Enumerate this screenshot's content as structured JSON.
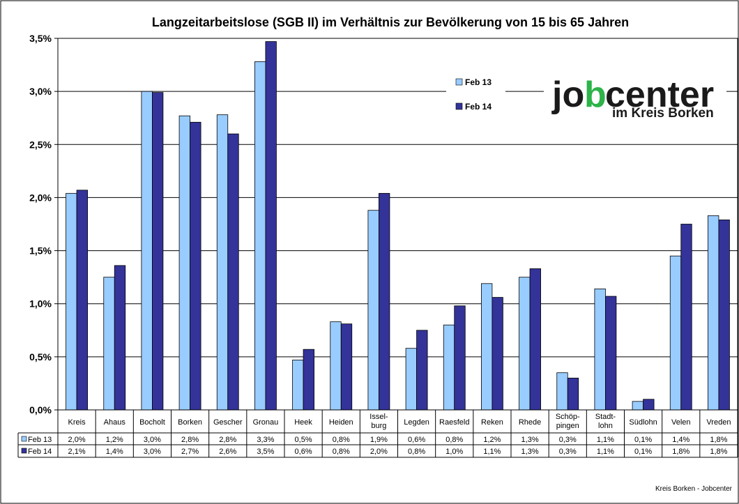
{
  "chart_data": {
    "type": "bar",
    "title": "Langzeitarbeitslose (SGB II) im Verhältnis zur Bevölkerung von 15 bis 65 Jahren",
    "categories": [
      "Kreis",
      "Ahaus",
      "Bocholt",
      "Borken",
      "Gescher",
      "Gronau",
      "Heek",
      "Heiden",
      "Issel-\nburg",
      "Legden",
      "Raesfeld",
      "Reken",
      "Rhede",
      "Schöp-\npingen",
      "Stadt-\nlohn",
      "Südlohn",
      "Velen",
      "Vreden"
    ],
    "series": [
      {
        "name": "Feb 13",
        "color": "#99CCFF",
        "values": [
          2.04,
          1.25,
          3.0,
          2.77,
          2.78,
          3.28,
          0.47,
          0.83,
          1.88,
          0.58,
          0.8,
          1.19,
          1.25,
          0.35,
          1.14,
          0.08,
          1.45,
          1.83
        ],
        "labels": [
          "2,0%",
          "1,2%",
          "3,0%",
          "2,8%",
          "2,8%",
          "3,3%",
          "0,5%",
          "0,8%",
          "1,9%",
          "0,6%",
          "0,8%",
          "1,2%",
          "1,3%",
          "0,3%",
          "1,1%",
          "0,1%",
          "1,4%",
          "1,8%"
        ]
      },
      {
        "name": "Feb 14",
        "color": "#333399",
        "values": [
          2.07,
          1.36,
          2.99,
          2.71,
          2.6,
          3.47,
          0.57,
          0.81,
          2.04,
          0.75,
          0.98,
          1.06,
          1.33,
          0.3,
          1.07,
          0.1,
          1.75,
          1.79
        ],
        "labels": [
          "2,1%",
          "1,4%",
          "3,0%",
          "2,7%",
          "2,6%",
          "3,5%",
          "0,6%",
          "0,8%",
          "2,0%",
          "0,8%",
          "1,0%",
          "1,1%",
          "1,3%",
          "0,3%",
          "1,1%",
          "0,1%",
          "1,8%",
          "1,8%"
        ]
      }
    ],
    "ylim": [
      0,
      3.5
    ],
    "yticks": [
      0,
      0.5,
      1,
      1.5,
      2,
      2.5,
      3,
      3.5
    ],
    "ytick_labels": [
      "0,0%",
      "0,5%",
      "1,0%",
      "1,5%",
      "2,0%",
      "2,5%",
      "3,0%",
      "3,5%"
    ],
    "grid": true,
    "legend_position": "top-right",
    "data_table": true
  },
  "logo": {
    "part1": "jo",
    "part2": "center",
    "subtitle": "im Kreis Borken",
    "colors": {
      "dark": "#1a1a1a",
      "green": "#2DB34A"
    }
  },
  "footer": "Kreis Borken - Jobcenter"
}
